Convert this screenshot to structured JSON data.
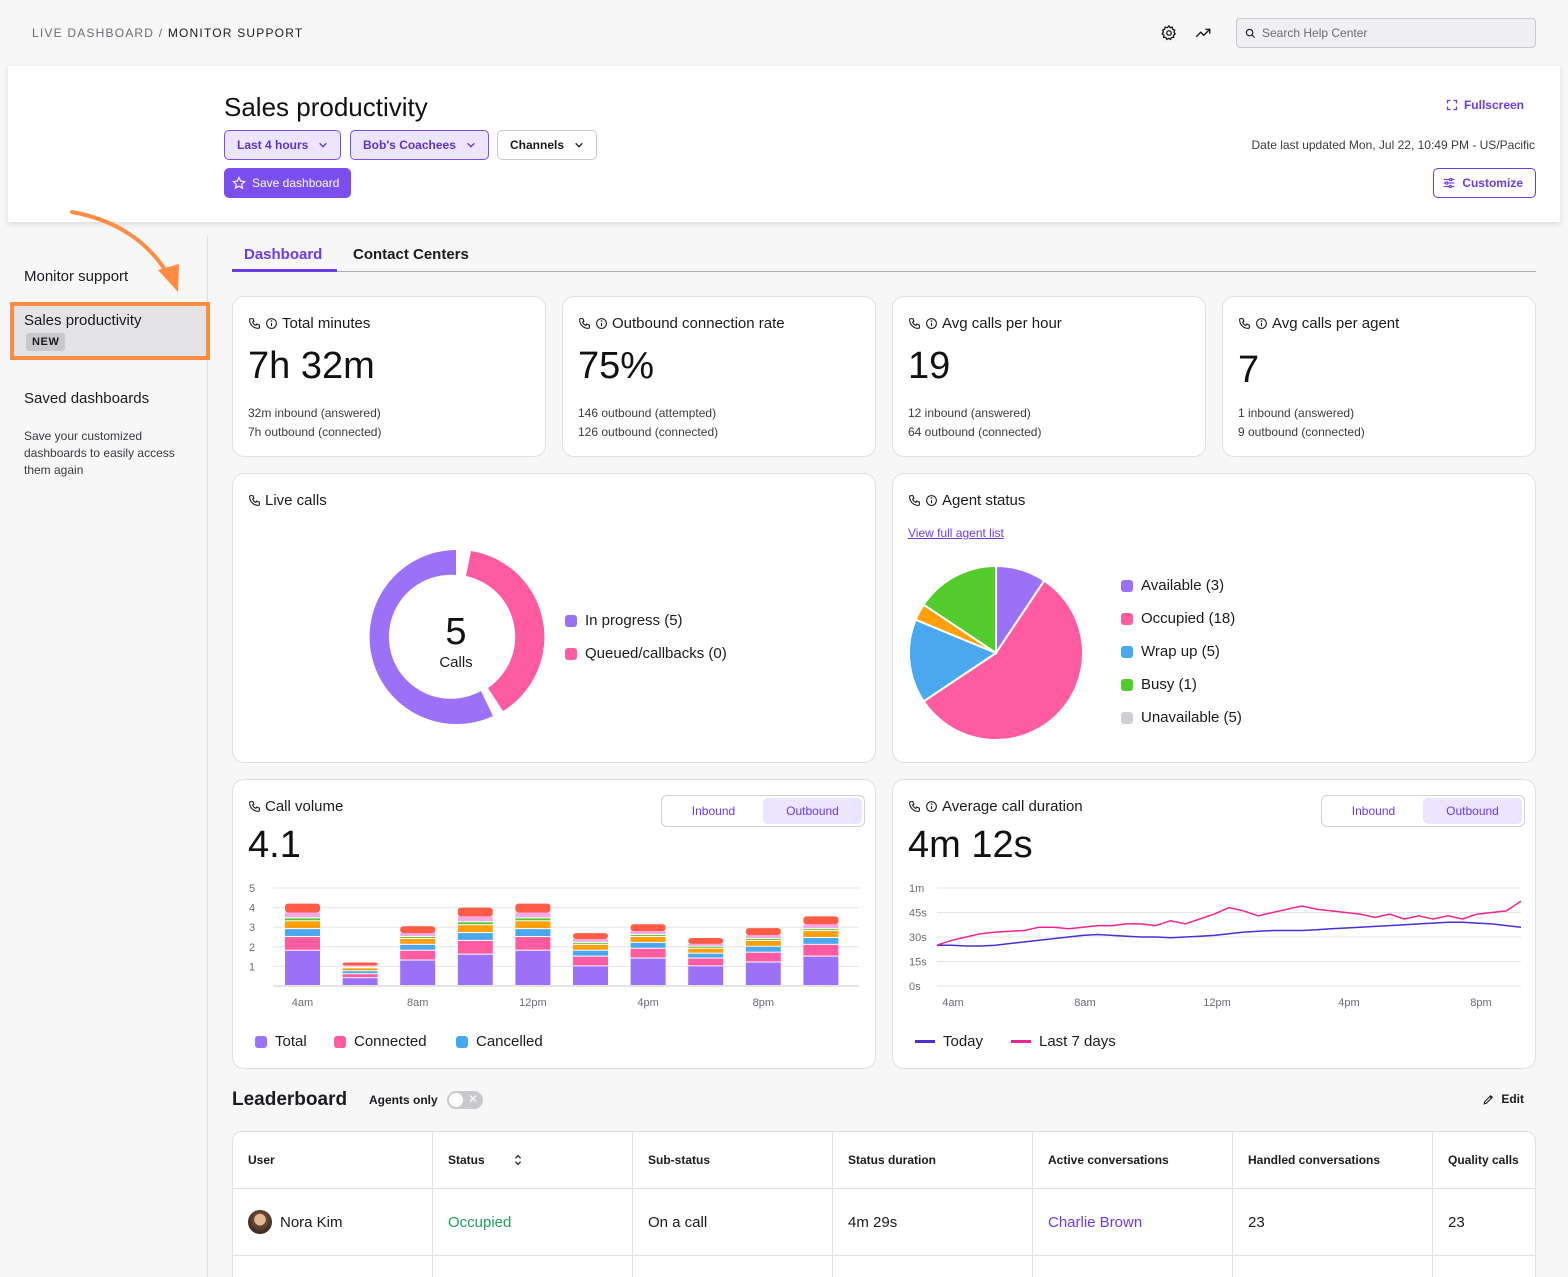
{
  "breadcrumb": {
    "parent": "LIVE DASHBOARD",
    "separator": "/",
    "current": "MONITOR SUPPORT"
  },
  "search": {
    "placeholder": "Search Help Center"
  },
  "header": {
    "title": "Sales productivity",
    "filters": {
      "time": "Last 4 hours",
      "team": "Bob's Coachees",
      "channels": "Channels"
    },
    "save_label": "Save dashboard",
    "fullscreen_label": "Fullscreen",
    "updated": "Date last updated Mon, Jul 22, 10:49 PM - US/Pacific",
    "customize_label": "Customize"
  },
  "sidebar": {
    "monitor": "Monitor support",
    "sales": "Sales productivity",
    "new_badge": "NEW",
    "saved": "Saved dashboards",
    "saved_desc": "Save your customized dashboards to easily access them again"
  },
  "tabs": {
    "dashboard": "Dashboard",
    "contact_centers": "Contact Centers"
  },
  "kpis": [
    {
      "title": "Total minutes",
      "value": "7h 32m",
      "sub1": "32m inbound (answered)",
      "sub2": "7h outbound (connected)"
    },
    {
      "title": "Outbound connection rate",
      "value": "75%",
      "sub1": "146 outbound (attempted)",
      "sub2": "126 outbound (connected)"
    },
    {
      "title": "Avg calls per hour",
      "value": "19",
      "sub1": "12 inbound (answered)",
      "sub2": "64 outbound (connected)"
    },
    {
      "title": "Avg calls per agent",
      "value": "7",
      "sub1": "1 inbound (answered)",
      "sub2": "9 outbound (connected)"
    }
  ],
  "live_calls": {
    "title": "Live calls",
    "center_value": "5",
    "center_label": "Calls",
    "legend": [
      "In progress (5)",
      "Queued/callbacks (0)"
    ]
  },
  "agent_status": {
    "title": "Agent status",
    "link": "View full agent list",
    "legend": [
      "Available (3)",
      "Occupied (18)",
      "Wrap up (5)",
      "Busy (1)",
      "Unavailable (5)"
    ]
  },
  "call_volume": {
    "title": "Call volume",
    "value": "4.1",
    "toggle": {
      "inbound": "Inbound",
      "outbound": "Outbound"
    },
    "legend": [
      "Total",
      "Connected",
      "Cancelled"
    ]
  },
  "avg_duration": {
    "title": "Average call duration",
    "value": "4m 12s",
    "toggle": {
      "inbound": "Inbound",
      "outbound": "Outbound"
    },
    "legend": [
      "Today",
      "Last 7 days"
    ]
  },
  "leaderboard": {
    "title": "Leaderboard",
    "agents_only": "Agents only",
    "edit": "Edit",
    "columns": [
      "User",
      "Status",
      "Sub-status",
      "Status duration",
      "Active conversations",
      "Handled conversations",
      "Quality calls"
    ],
    "rows": [
      {
        "user": "Nora Kim",
        "status": "Occupied",
        "sub_status": "On a call",
        "duration": "4m 29s",
        "active": "Charlie Brown",
        "handled": "23",
        "quality": "23"
      }
    ]
  },
  "colors": {
    "accent": "#7b4ef0",
    "pink": "#ff5ba0",
    "blue": "#4aa8ef",
    "green": "#52cc2c",
    "orange": "#ff9f0a",
    "gray": "#cfcfd4",
    "red": "#ff5b45",
    "occupied_text": "#1f9e5a"
  },
  "icons": [
    "settings-gear-icon",
    "trending-up-icon",
    "search-icon",
    "fullscreen-icon",
    "star-icon",
    "sliders-icon",
    "phone-icon",
    "info-icon",
    "chevron-down-icon",
    "sort-icon",
    "pencil-icon"
  ],
  "chart_data": [
    {
      "type": "pie",
      "title": "Live calls",
      "labels": [
        "In progress",
        "Queued/callbacks"
      ],
      "values": [
        5,
        0
      ],
      "note_center": "5 Calls"
    },
    {
      "type": "pie",
      "title": "Agent status",
      "labels": [
        "Available",
        "Occupied",
        "Wrap up",
        "Busy",
        "Unavailable"
      ],
      "values": [
        3,
        18,
        5,
        1,
        5
      ]
    },
    {
      "type": "bar",
      "stacked": true,
      "title": "Call volume",
      "categories": [
        "4am",
        "",
        "8am",
        "",
        "12pm",
        "",
        "4pm",
        "",
        "8pm",
        ""
      ],
      "x_tick_labels": [
        "4am",
        "8am",
        "12pm",
        "4pm",
        "8pm"
      ],
      "ylim": [
        0,
        5
      ],
      "y_ticks": [
        1,
        2,
        3,
        4,
        5
      ],
      "series": [
        {
          "name": "Total",
          "color": "#9b72f7",
          "values": [
            1.8,
            0.4,
            1.3,
            1.6,
            1.8,
            1.0,
            1.4,
            1.0,
            1.2,
            1.5
          ]
        },
        {
          "name": "Connected",
          "color": "#ff5ba0",
          "values": [
            0.7,
            0.2,
            0.5,
            0.7,
            0.7,
            0.5,
            0.5,
            0.4,
            0.5,
            0.6
          ]
        },
        {
          "name": "Cancelled",
          "color": "#4aa8ef",
          "values": [
            0.4,
            0.15,
            0.3,
            0.4,
            0.4,
            0.3,
            0.3,
            0.25,
            0.3,
            0.35
          ]
        },
        {
          "color": "#ff9f0a",
          "values": [
            0.4,
            0.15,
            0.3,
            0.4,
            0.4,
            0.3,
            0.3,
            0.25,
            0.3,
            0.35
          ]
        },
        {
          "color": "#52cc2c",
          "values": [
            0.15,
            0.05,
            0.1,
            0.15,
            0.15,
            0.1,
            0.1,
            0.1,
            0.1,
            0.1
          ]
        },
        {
          "color": "#f7a6e6",
          "values": [
            0.3,
            0.1,
            0.2,
            0.3,
            0.3,
            0.2,
            0.2,
            0.15,
            0.2,
            0.25
          ]
        },
        {
          "color": "#ff5b45",
          "values": [
            0.45,
            0.15,
            0.35,
            0.45,
            0.45,
            0.3,
            0.35,
            0.3,
            0.35,
            0.4
          ]
        }
      ],
      "legend_position": "bottom",
      "grid": true
    },
    {
      "type": "line",
      "title": "Average call duration",
      "y_ticks": [
        "0s",
        "15s",
        "30s",
        "45s",
        "1m"
      ],
      "ylim_seconds": [
        0,
        60
      ],
      "x_tick_labels": [
        "4am",
        "8am",
        "12pm",
        "4pm",
        "8pm"
      ],
      "x": [
        0,
        1,
        2,
        3,
        4,
        5,
        6,
        7,
        8,
        9,
        10,
        11,
        12,
        13,
        14,
        15,
        16,
        17,
        18,
        19,
        20,
        21,
        22,
        23,
        24,
        25,
        26,
        27,
        28,
        29,
        30,
        31,
        32,
        33,
        34,
        35,
        36,
        37,
        38,
        39,
        40
      ],
      "series": [
        {
          "name": "Today",
          "color": "#4b2ed6",
          "values": [
            25,
            25,
            24.5,
            24.5,
            25,
            26,
            27,
            28,
            29,
            30,
            31,
            31.5,
            31,
            30.5,
            30,
            30,
            29.5,
            30,
            30.5,
            31,
            32,
            33,
            33.5,
            34,
            34,
            34,
            34.5,
            35,
            35.5,
            36,
            36.5,
            37,
            37.5,
            38,
            38.5,
            39,
            39,
            38.5,
            38,
            37,
            36
          ]
        },
        {
          "name": "Last 7 days",
          "color": "#f0248f",
          "values": [
            25,
            28,
            30,
            32,
            33,
            33.5,
            34,
            36,
            36,
            35,
            36,
            37,
            37,
            38,
            38,
            37,
            40,
            38,
            41,
            44,
            48,
            46,
            43,
            45,
            47,
            49,
            47,
            46,
            45,
            44,
            42,
            44,
            41,
            43,
            41,
            43,
            41,
            44,
            45,
            46,
            52
          ]
        }
      ],
      "legend_position": "bottom",
      "grid": true
    }
  ]
}
